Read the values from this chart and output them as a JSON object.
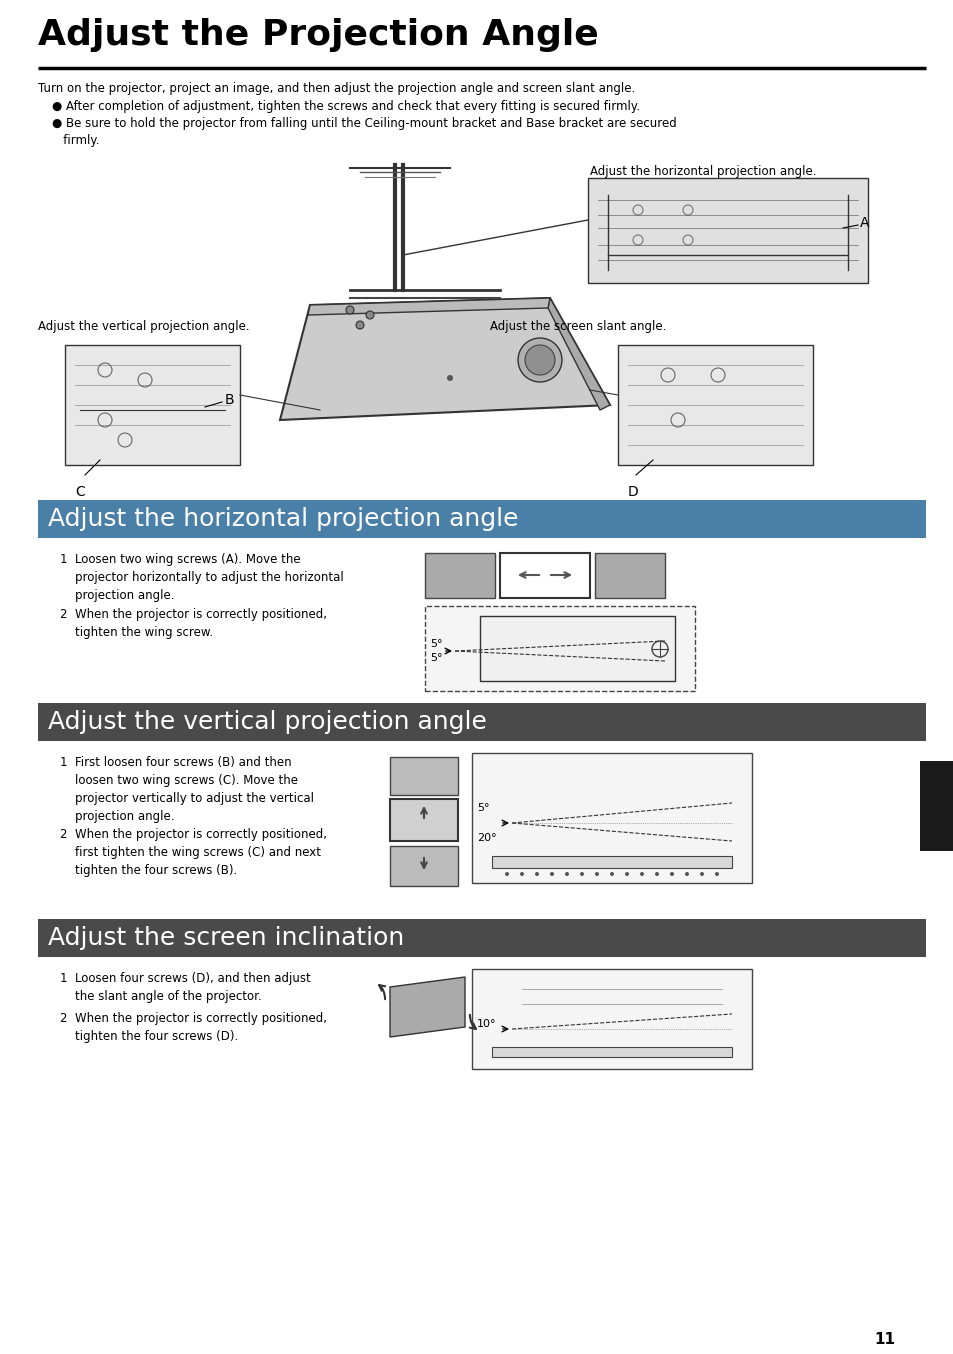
{
  "page_title": "Adjust the Projection Angle",
  "bg_color": "#ffffff",
  "title_fontsize": 26,
  "body_fontsize": 8.5,
  "section_bg_color": "#4a7fa8",
  "section_text_color": "#ffffff",
  "section_fontsize": 18,
  "intro_text": "Turn on the projector, project an image, and then adjust the projection angle and screen slant angle.",
  "bullet1": "● After completion of adjustment, tighten the screws and check that every fitting is secured firmly.",
  "bullet2": "● Be sure to hold the projector from falling until the Ceiling-mount bracket and Base bracket are secured\n   firmly.",
  "sec1_title": "Adjust the horizontal projection angle",
  "sec2_title": "Adjust the vertical projection angle",
  "sec3_title": "Adjust the screen inclination",
  "sec1_step1": "1  Loosen two wing screws (A). Move the\n    projector horizontally to adjust the horizontal\n    projection angle.",
  "sec1_step2": "2  When the projector is correctly positioned,\n    tighten the wing screw.",
  "sec2_step1": "1  First loosen four screws (B) and then\n    loosen two wing screws (C). Move the\n    projector vertically to adjust the vertical\n    projection angle.",
  "sec2_step2": "2  When the projector is correctly positioned,\n    first tighten the wing screws (C) and next\n    tighten the four screws (B).",
  "sec3_step1": "1  Loosen four screws (D), and then adjust\n    the slant angle of the projector.",
  "sec3_step2": "2  When the projector is correctly positioned,\n    tighten the four screws (D).",
  "label_horiz": "Adjust the horizontal projection angle.",
  "label_vert": "Adjust the vertical projection angle.",
  "label_screen": "Adjust the screen slant angle.",
  "label_A": "A",
  "label_B": "B",
  "label_C": "C",
  "label_D": "D",
  "angle_5a": "5°",
  "angle_5b": "5°",
  "angle_5c": "5°",
  "angle_20": "20°",
  "angle_10": "10°",
  "page_number": "11",
  "section_bg_color2": "#4a4a4a",
  "black_tab_color": "#1a1a1a"
}
